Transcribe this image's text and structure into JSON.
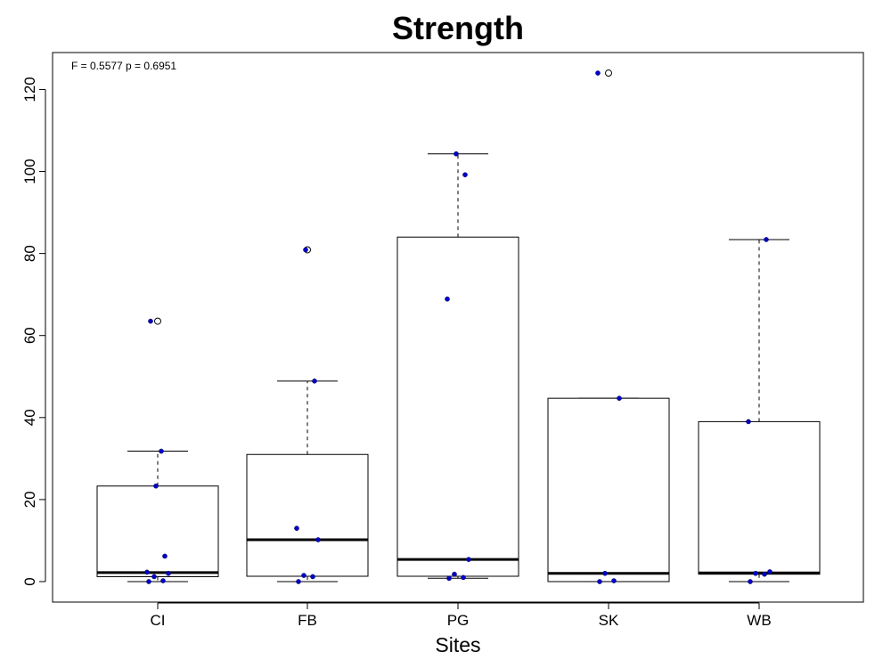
{
  "chart_data": {
    "type": "box",
    "title": "Strength",
    "xlabel": "Sites",
    "ylabel": "",
    "ylim": [
      -5,
      129
    ],
    "yticks": [
      0,
      20,
      40,
      60,
      80,
      100,
      120
    ],
    "annotation": "F = 0.5577 p = 0.6951",
    "grid": false,
    "colors": {
      "points": "#0000cc",
      "box": "#000000",
      "outlier": "#000000"
    },
    "categories": [
      "CI",
      "FB",
      "PG",
      "SK",
      "WB"
    ],
    "boxes": [
      {
        "category": "CI",
        "whisker_low": 0,
        "q1": 1.2,
        "median": 2.2,
        "q3": 23.3,
        "whisker_high": 31.8,
        "outliers": [
          63.5
        ],
        "points": [
          0,
          0.2,
          1.2,
          2.0,
          2.3,
          6.2,
          23.3,
          31.8,
          63.5
        ]
      },
      {
        "category": "FB",
        "whisker_low": 0,
        "q1": 1.3,
        "median": 10.2,
        "q3": 31.0,
        "whisker_high": 48.9,
        "outliers": [
          80.9
        ],
        "points": [
          0,
          1.2,
          1.5,
          10.2,
          13.0,
          48.9,
          80.9
        ]
      },
      {
        "category": "PG",
        "whisker_low": 0.8,
        "q1": 1.3,
        "median": 5.4,
        "q3": 84.0,
        "whisker_high": 104.3,
        "outliers": [],
        "points": [
          0.8,
          1.0,
          1.8,
          5.4,
          68.9,
          99.2,
          104.3
        ]
      },
      {
        "category": "SK",
        "whisker_low": 0,
        "q1": 0,
        "median": 2.0,
        "q3": 44.7,
        "whisker_high": 44.7,
        "outliers": [
          124.0
        ],
        "points": [
          0,
          0.2,
          2.0,
          44.7,
          124.0
        ]
      },
      {
        "category": "WB",
        "whisker_low": 0,
        "q1": 1.8,
        "median": 2.1,
        "q3": 39.0,
        "whisker_high": 83.4,
        "outliers": [],
        "points": [
          0,
          1.8,
          2.0,
          2.4,
          39.0,
          83.4
        ]
      }
    ]
  }
}
